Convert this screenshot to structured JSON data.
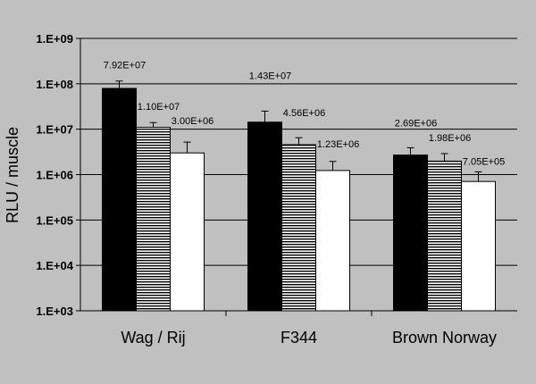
{
  "chart_data": {
    "type": "bar",
    "ylabel": "RLU / muscle",
    "xlabel": "",
    "scale": "log",
    "ylim": [
      1000,
      1000000000
    ],
    "yticks": [
      "1.E+03",
      "1.E+04",
      "1.E+05",
      "1.E+06",
      "1.E+07",
      "1.E+08",
      "1.E+09"
    ],
    "grid": true,
    "legend": "none",
    "categories": [
      "Wag / Rij",
      "F344",
      "Brown Norway"
    ],
    "series": [
      {
        "fill": "black",
        "values": [
          79200000,
          14300000,
          2690000
        ],
        "errors": [
          115000000,
          25000000,
          3900000
        ],
        "labels": [
          "7.92E+07",
          "1.43E+07",
          "2.69E+06"
        ]
      },
      {
        "fill": "horizontal-stripes",
        "values": [
          11000000,
          4560000,
          1980000
        ],
        "errors": [
          14000000,
          6500000,
          2900000
        ],
        "labels": [
          "1.10E+07",
          "4.56E+06",
          "1.98E+06"
        ]
      },
      {
        "fill": "white",
        "values": [
          3000000,
          1230000,
          705000
        ],
        "errors": [
          5200000,
          1950000,
          1150000
        ],
        "labels": [
          "3.00E+06",
          "1.23E+06",
          "7.05E+05"
        ]
      }
    ]
  }
}
